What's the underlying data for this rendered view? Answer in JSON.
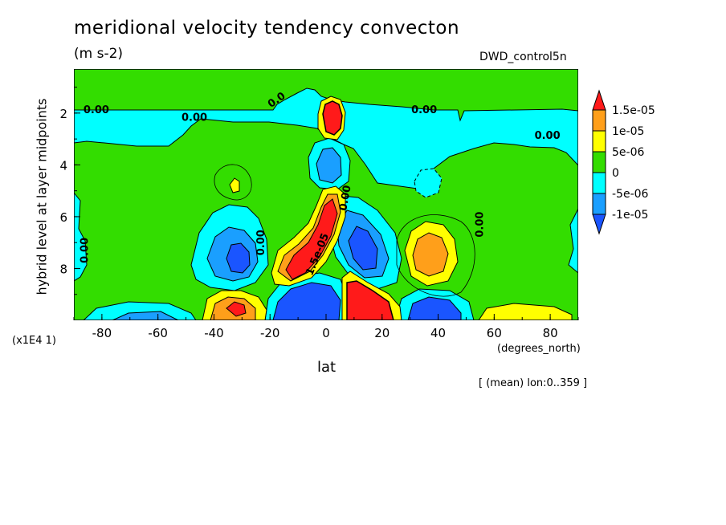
{
  "chart_data": {
    "type": "heatmap",
    "title": "meridional velocity tendency convecton",
    "units": "(m s-2)",
    "run_label": "DWD_control5n",
    "xlabel": "lat",
    "x_units": "(degrees_north)",
    "ylabel": "hybrid level at layer midpoints",
    "y_scale_note": "(x1E4 1)",
    "averaging_note": "[ (mean) lon:0..359 ]",
    "xlim": [
      -90,
      90
    ],
    "ylim": [
      10,
      0.3
    ],
    "x_ticks": [
      "-80",
      "-60",
      "-40",
      "-20",
      "0",
      "20",
      "40",
      "60",
      "80"
    ],
    "x_tick_values": [
      -80,
      -60,
      -40,
      -20,
      0,
      20,
      40,
      60,
      80
    ],
    "y_ticks": [
      "2",
      "4",
      "6",
      "8"
    ],
    "y_tick_values": [
      2,
      4,
      6,
      8
    ],
    "colorbar": {
      "labels": [
        "1.5e-05",
        "1e-05",
        "5e-06",
        "0",
        "-5e-06",
        "-1e-05"
      ],
      "levels": [
        1.5e-05,
        1e-05,
        5e-06,
        0,
        -5e-06,
        -1e-05
      ],
      "colors": {
        "gt_1.5e-05": "#ff1a1a",
        "1e-05_to_1.5e-05": "#ff9f1a",
        "5e-06_to_1e-05": "#ffff00",
        "0_to_5e-06": "#33dd00",
        "-5e-06_to_0": "#00ffff",
        "-1e-05_to_-5e-06": "#1a9fff",
        "lt_-1e-05": "#1a55ff"
      }
    },
    "contour_labels": [
      {
        "text": "0.00",
        "lat": -82,
        "level": 2.0
      },
      {
        "text": "0.00",
        "lat": -47,
        "level": 2.3
      },
      {
        "text": "0.00",
        "lat": 35,
        "level": 2.0
      },
      {
        "text": "0.00",
        "lat": 79,
        "level": 3.0
      },
      {
        "text": "0.00",
        "lat": -85,
        "level": 7.3
      },
      {
        "text": "0.00",
        "lat": -22,
        "level": 7.0
      },
      {
        "text": "0.00",
        "lat": 56,
        "level": 6.3
      },
      {
        "text": "0.00",
        "lat": 8,
        "level": 5.3
      },
      {
        "text": "1.5e-05",
        "lat": -2,
        "level": 7.5
      },
      {
        "text": "0.0",
        "lat": -17,
        "level": 1.6
      }
    ],
    "features": [
      {
        "sign": "positive",
        "peak": ">1.5e-05",
        "lat": 2,
        "level": 1.9
      },
      {
        "sign": "positive",
        "peak": ">1.5e-05",
        "lat": -5,
        "level": 7.0
      },
      {
        "sign": "positive",
        "peak": ">1.5e-05",
        "lat": 16,
        "level": 9.3
      },
      {
        "sign": "positive",
        "peak": ">1.5e-05",
        "lat": -33,
        "level": 9.4
      },
      {
        "sign": "positive",
        "peak": "1e-05",
        "lat": 35,
        "level": 7.7
      },
      {
        "sign": "positive",
        "peak": "5e-06",
        "lat": -35,
        "level": 4.6
      },
      {
        "sign": "positive",
        "peak": "5e-06",
        "lat": 70,
        "level": 9.8
      },
      {
        "sign": "negative",
        "peak": "<-1e-05",
        "lat": -35,
        "level": 7.4
      },
      {
        "sign": "negative",
        "peak": "<-1e-05",
        "lat": 0,
        "level": 9.0
      },
      {
        "sign": "negative",
        "peak": "<-1e-05",
        "lat": 12,
        "level": 7.4
      },
      {
        "sign": "negative",
        "peak": "<-1e-05",
        "lat": 35,
        "level": 9.5
      },
      {
        "sign": "negative",
        "peak": "-1e-05",
        "lat": 3,
        "level": 3.9
      },
      {
        "sign": "negative",
        "peak": "-5e-06",
        "lat": -65,
        "level": 9.7
      },
      {
        "sign": "negative",
        "peak": "-5e-06",
        "lat": 37,
        "level": 4.6
      }
    ]
  }
}
